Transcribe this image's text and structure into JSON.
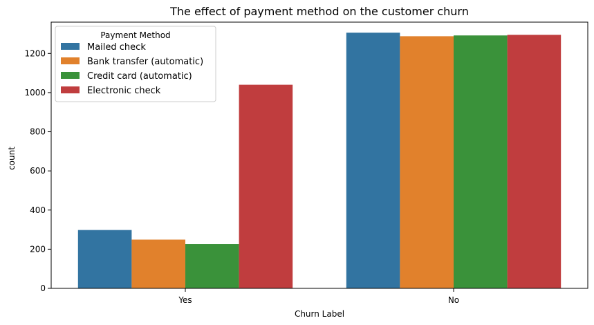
{
  "chart_data": {
    "type": "bar",
    "title": "The effect of payment method on the customer churn",
    "xlabel": "Churn Label",
    "ylabel": "count",
    "categories": [
      "Yes",
      "No"
    ],
    "ylim": [
      0,
      1360
    ],
    "yticks": [
      0,
      200,
      400,
      600,
      800,
      1000,
      1200
    ],
    "grid": false,
    "legend": {
      "title": "Payment Method",
      "placement": "top-left"
    },
    "series": [
      {
        "name": "Mailed check",
        "color": "#3274a1",
        "values": [
          298,
          1306
        ]
      },
      {
        "name": "Bank transfer (automatic)",
        "color": "#e1812c",
        "values": [
          249,
          1288
        ]
      },
      {
        "name": "Credit card (automatic)",
        "color": "#3a923a",
        "values": [
          226,
          1292
        ]
      },
      {
        "name": "Electronic check",
        "color": "#c03d3e",
        "values": [
          1040,
          1295
        ]
      }
    ]
  }
}
